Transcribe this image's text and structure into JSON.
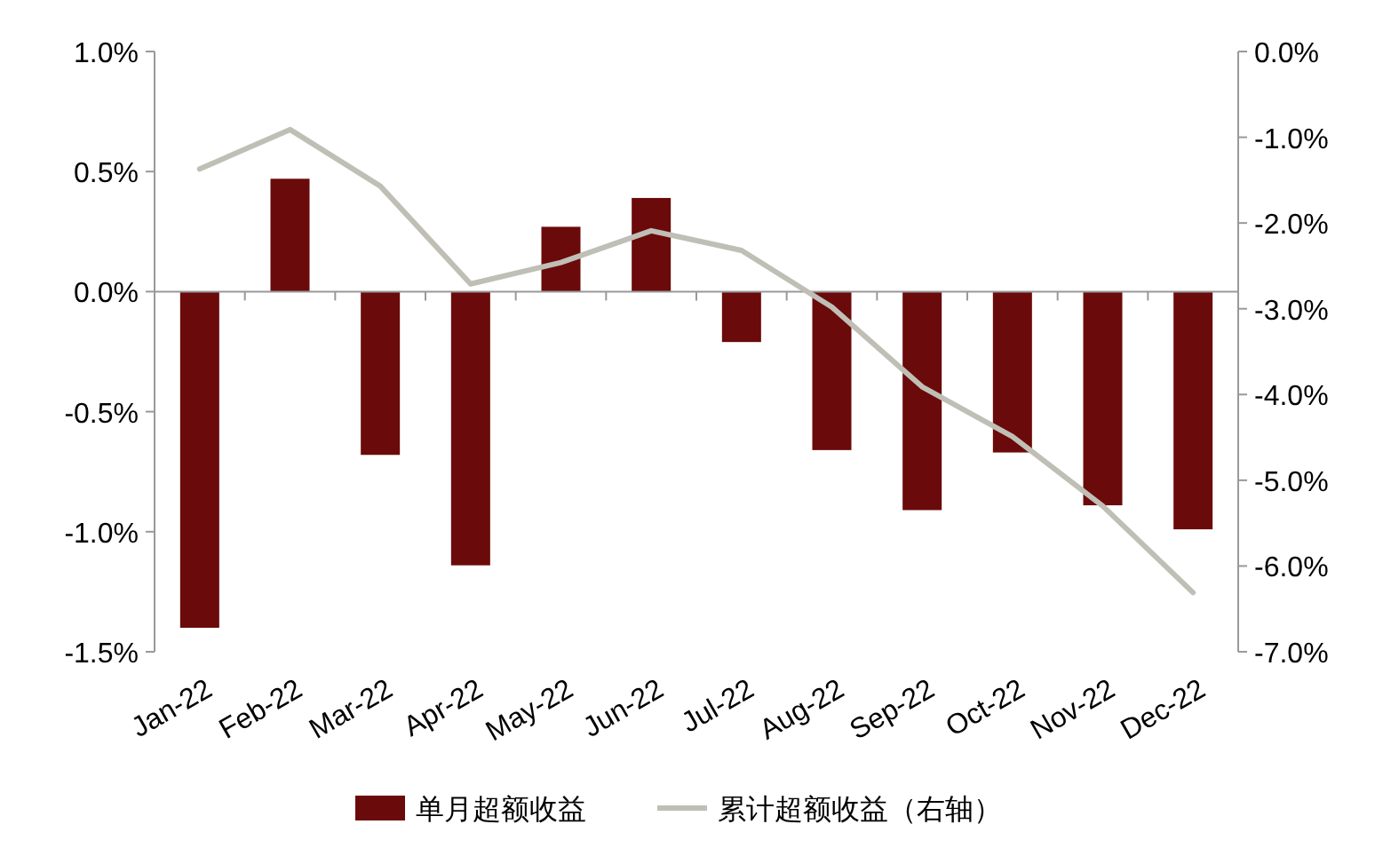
{
  "chart_data": {
    "type": "bar",
    "categories": [
      "Jan-22",
      "Feb-22",
      "Mar-22",
      "Apr-22",
      "May-22",
      "Jun-22",
      "Jul-22",
      "Aug-22",
      "Sep-22",
      "Oct-22",
      "Nov-22",
      "Dec-22"
    ],
    "series": [
      {
        "name": "单月超额收益",
        "color": "#6b0a0a",
        "values": [
          -1.4,
          0.47,
          -0.68,
          -1.14,
          0.27,
          0.39,
          -0.21,
          -0.66,
          -0.91,
          -0.67,
          -0.89,
          -0.99
        ]
      },
      {
        "name": "累计超额收益（右轴）",
        "type": "line",
        "axis": "y2",
        "color": "#bfbfb6",
        "values": [
          -1.37,
          -0.91,
          -1.57,
          -2.71,
          -2.46,
          -2.09,
          -2.32,
          -2.98,
          -3.91,
          -4.49,
          -5.3,
          -6.31
        ]
      }
    ],
    "ylim": [
      -1.5,
      1.0
    ],
    "yticks": [
      {
        "value": 1.0,
        "label": "1.0%"
      },
      {
        "value": 0.5,
        "label": "0.5%"
      },
      {
        "value": 0,
        "label": "0.0%"
      },
      {
        "value": -0.5,
        "label": "-0.5%"
      },
      {
        "value": -1.0,
        "label": "-1.0%"
      },
      {
        "value": -1.5,
        "label": "-1.5%"
      }
    ],
    "y2lim": [
      -7.0,
      0.0
    ],
    "y2ticks": [
      {
        "value": 0,
        "label": "0.0%"
      },
      {
        "value": -1,
        "label": "-1.0%"
      },
      {
        "value": -2,
        "label": "-2.0%"
      },
      {
        "value": -3,
        "label": "-3.0%"
      },
      {
        "value": -4,
        "label": "-4.0%"
      },
      {
        "value": -5,
        "label": "-5.0%"
      },
      {
        "value": -6,
        "label": "-6.0%"
      },
      {
        "value": -7,
        "label": "-7.0%"
      }
    ],
    "legend": "bottom",
    "marker": "none",
    "line_style": "solid"
  }
}
